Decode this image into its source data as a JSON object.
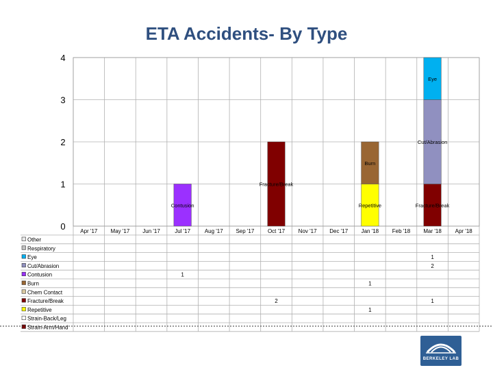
{
  "colors": {
    "Other": "#e8e8e8",
    "Respiratory": "#c0c0c0",
    "Eye": "#00b0f0",
    "Cut/Abrasion": "#9090c0",
    "Contusion": "#9b30ff",
    "Burn": "#996633",
    "Chem Contact": "#d9c8a0",
    "Fracture/Break": "#800000",
    "Repetitive": "#ffff00",
    "Strain-Back/Leg": "#ffffff",
    "Strain-Arm/Hand": "#800000"
  },
  "chart_data": {
    "type": "bar",
    "stacked": true,
    "title": "ETA Accidents- By Type",
    "ylim": [
      0,
      4
    ],
    "yticks": [
      0,
      1,
      2,
      3,
      4
    ],
    "grid": true,
    "legend": "bottom-left (data table)",
    "categories": [
      "Apr '17",
      "May '17",
      "Jun '17",
      "Jul '17",
      "Aug '17",
      "Sep '17",
      "Oct '17",
      "Nov '17",
      "Dec '17",
      "Jan '18",
      "Feb '18",
      "Mar '18",
      "Apr '18"
    ],
    "series": [
      {
        "name": "Other",
        "values": [
          0,
          0,
          0,
          0,
          0,
          0,
          0,
          0,
          0,
          0,
          0,
          0,
          0
        ]
      },
      {
        "name": "Respiratory",
        "values": [
          0,
          0,
          0,
          0,
          0,
          0,
          0,
          0,
          0,
          0,
          0,
          0,
          0
        ]
      },
      {
        "name": "Eye",
        "values": [
          0,
          0,
          0,
          0,
          0,
          0,
          0,
          0,
          0,
          0,
          0,
          1,
          0
        ]
      },
      {
        "name": "Cut/Abrasion",
        "values": [
          0,
          0,
          0,
          0,
          0,
          0,
          0,
          0,
          0,
          0,
          0,
          2,
          0
        ]
      },
      {
        "name": "Contusion",
        "values": [
          0,
          0,
          0,
          1,
          0,
          0,
          0,
          0,
          0,
          0,
          0,
          0,
          0
        ]
      },
      {
        "name": "Burn",
        "values": [
          0,
          0,
          0,
          0,
          0,
          0,
          0,
          0,
          0,
          1,
          0,
          0,
          0
        ]
      },
      {
        "name": "Chem Contact",
        "values": [
          0,
          0,
          0,
          0,
          0,
          0,
          0,
          0,
          0,
          0,
          0,
          0,
          0
        ]
      },
      {
        "name": "Fracture/Break",
        "values": [
          0,
          0,
          0,
          0,
          0,
          0,
          2,
          0,
          0,
          0,
          0,
          1,
          0
        ]
      },
      {
        "name": "Repetitive",
        "values": [
          0,
          0,
          0,
          0,
          0,
          0,
          0,
          0,
          0,
          1,
          0,
          0,
          0
        ]
      },
      {
        "name": "Strain-Back/Leg",
        "values": [
          0,
          0,
          0,
          0,
          0,
          0,
          0,
          0,
          0,
          0,
          0,
          0,
          0
        ]
      },
      {
        "name": "Strain-Arm/Hand",
        "values": [
          0,
          0,
          0,
          0,
          0,
          0,
          0,
          0,
          0,
          0,
          0,
          0,
          0
        ]
      }
    ],
    "stack_order": [
      "Repetitive",
      "Fracture/Break",
      "Contusion",
      "Burn",
      "Cut/Abrasion",
      "Eye"
    ],
    "annotations": [
      {
        "text": "Eye",
        "category": "Mar '18",
        "y": 3.5
      },
      {
        "text": "Cut/Abrasion",
        "category": "Mar '18",
        "y": 2.0
      },
      {
        "text": "Burn",
        "category": "Jan '18",
        "y": 1.5
      },
      {
        "text": "Fracture/Break",
        "category": "Oct '17",
        "y": 1.0
      },
      {
        "text": "Contusion",
        "category": "Jul '17",
        "y": 0.5
      },
      {
        "text": "Repetitive",
        "category": "Jan '18",
        "y": 0.5
      },
      {
        "text": "Fracture/Break",
        "category": "Mar '18",
        "y": 0.5
      }
    ]
  },
  "logo": {
    "text": "BERKELEY LAB"
  }
}
